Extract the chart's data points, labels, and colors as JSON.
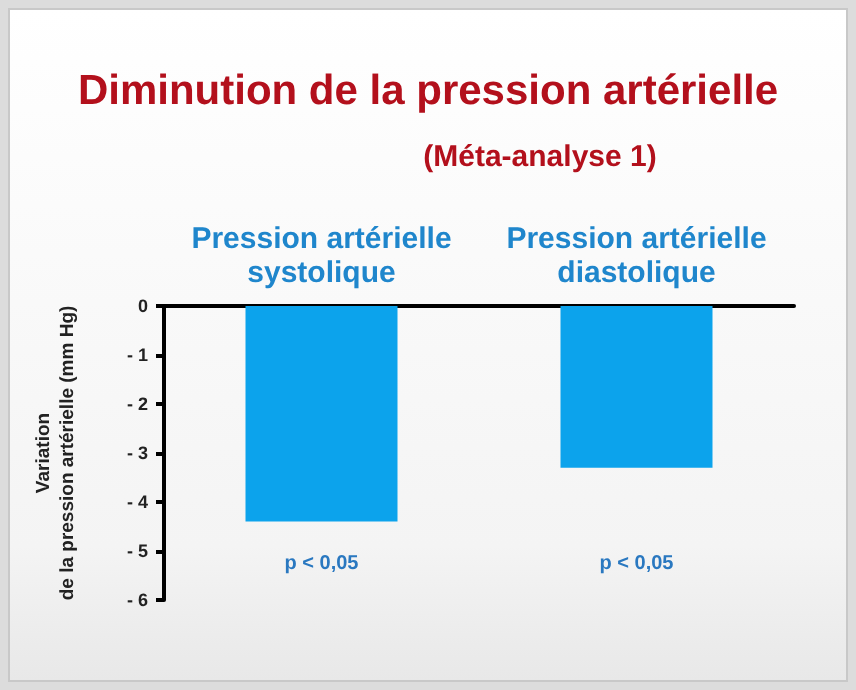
{
  "chart_data": {
    "type": "bar",
    "title": "Diminution de la pression artérielle",
    "subtitle": "(Méta-analyse 1)",
    "ylabel": "Variation\nde la pression artérielle (mm Hg)",
    "categories": [
      "Pression artérielle\nsystolique",
      "Pression artérielle\ndiastolique"
    ],
    "values": [
      -4.4,
      -3.3
    ],
    "color": "#0ca3ec",
    "ylim": [
      -6,
      0
    ],
    "yticks": [
      {
        "value": -6,
        "label": "- 6"
      },
      {
        "value": -5,
        "label": "- 5"
      },
      {
        "value": -4,
        "label": "- 4"
      },
      {
        "value": -3,
        "label": "- 3"
      },
      {
        "value": -2,
        "label": "- 2"
      },
      {
        "value": -1,
        "label": "- 1"
      },
      {
        "value": 0,
        "label": "0"
      }
    ],
    "annotations": [
      "p < 0,05",
      "p < 0,05"
    ]
  }
}
